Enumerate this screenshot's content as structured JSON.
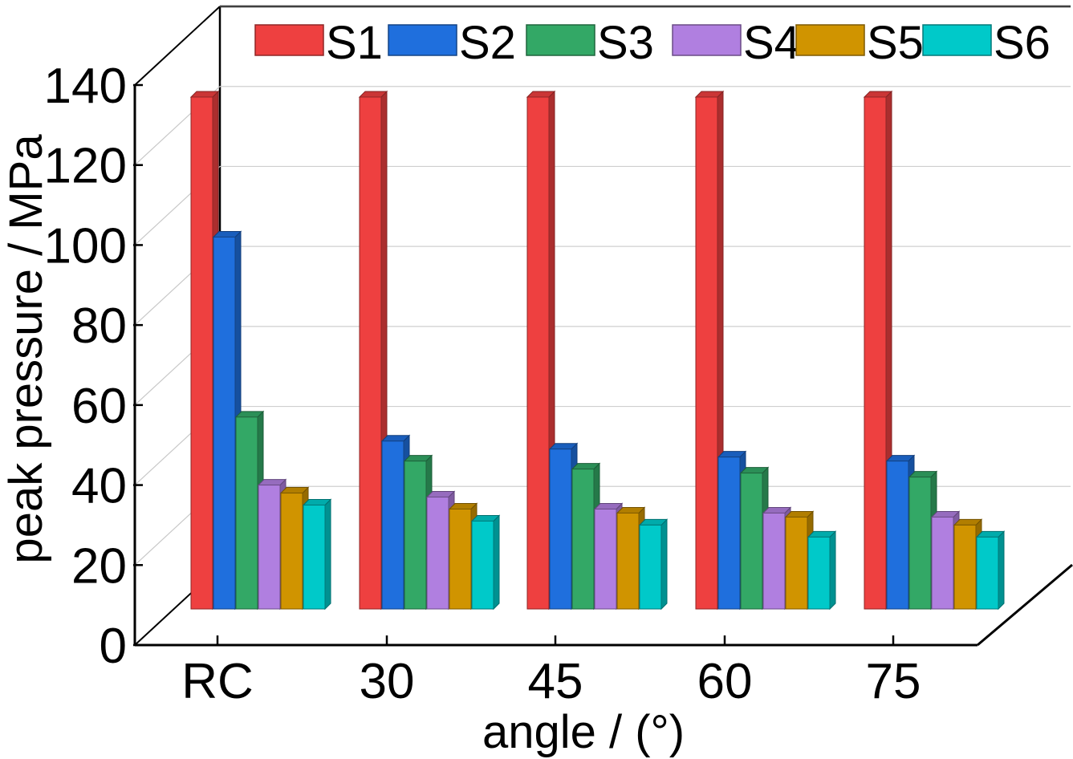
{
  "chart_data": {
    "type": "bar",
    "xlabel": "angle / (°)",
    "ylabel": "peak pressure / MPa",
    "ylim": [
      0,
      140
    ],
    "yticks": [
      0,
      20,
      40,
      60,
      80,
      100,
      120,
      140
    ],
    "categories": [
      "RC",
      "30",
      "45",
      "60",
      "75"
    ],
    "legend_position": "top",
    "grid": true,
    "series": [
      {
        "name": "S1",
        "color": "#ee4040",
        "values": [
          137,
          137,
          137,
          137,
          137
        ]
      },
      {
        "name": "S2",
        "color": "#1f6fdd",
        "values": [
          102,
          51,
          49,
          47,
          46
        ]
      },
      {
        "name": "S3",
        "color": "#33a866",
        "values": [
          57,
          46,
          44,
          43,
          42
        ]
      },
      {
        "name": "S4",
        "color": "#b07fe0",
        "values": [
          40,
          37,
          34,
          33,
          32
        ]
      },
      {
        "name": "S5",
        "color": "#d09400",
        "values": [
          38,
          34,
          33,
          32,
          30
        ]
      },
      {
        "name": "S6",
        "color": "#00c9c9",
        "values": [
          35,
          31,
          30,
          27,
          27
        ]
      }
    ]
  }
}
